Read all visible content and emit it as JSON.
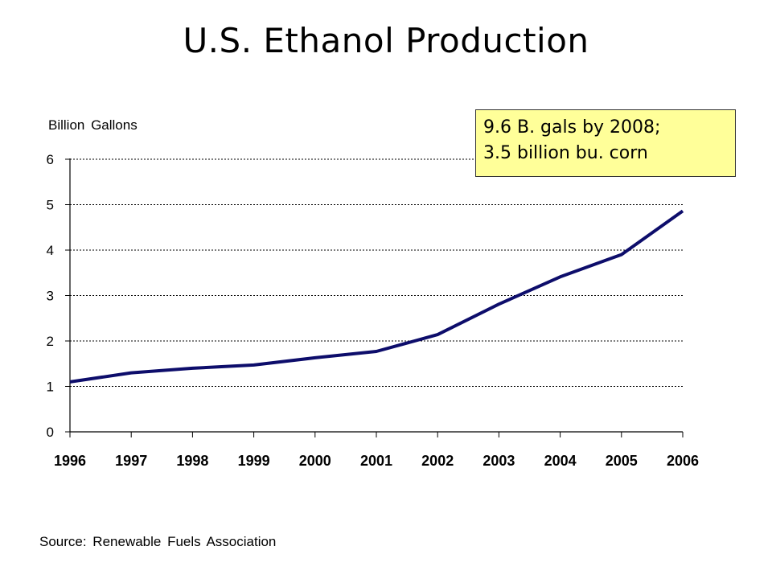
{
  "slide": {
    "title": "U.S. Ethanol Production",
    "y_unit_label": "Billion Gallons",
    "source": "Source: Renewable Fuels Association",
    "callout": {
      "line1": "9.6 B. gals by 2008;",
      "line2": "3.5 billion bu. corn"
    }
  },
  "chart_data": {
    "type": "line",
    "title": "U.S. Ethanol Production",
    "ylabel": "Billion Gallons",
    "xlabel": "",
    "categories": [
      "1996",
      "1997",
      "1998",
      "1999",
      "2000",
      "2001",
      "2002",
      "2003",
      "2004",
      "2005",
      "2006"
    ],
    "series": [
      {
        "values": [
          1.1,
          1.3,
          1.4,
          1.47,
          1.63,
          1.77,
          2.14,
          2.81,
          3.41,
          3.9,
          4.86
        ]
      }
    ],
    "ylim": [
      0,
      6
    ],
    "yticks": [
      "0",
      "1",
      "2",
      "3",
      "4",
      "5",
      "6"
    ],
    "grid": "horizontal dotted",
    "legend": "none",
    "line_color": "#0d0d6b"
  }
}
